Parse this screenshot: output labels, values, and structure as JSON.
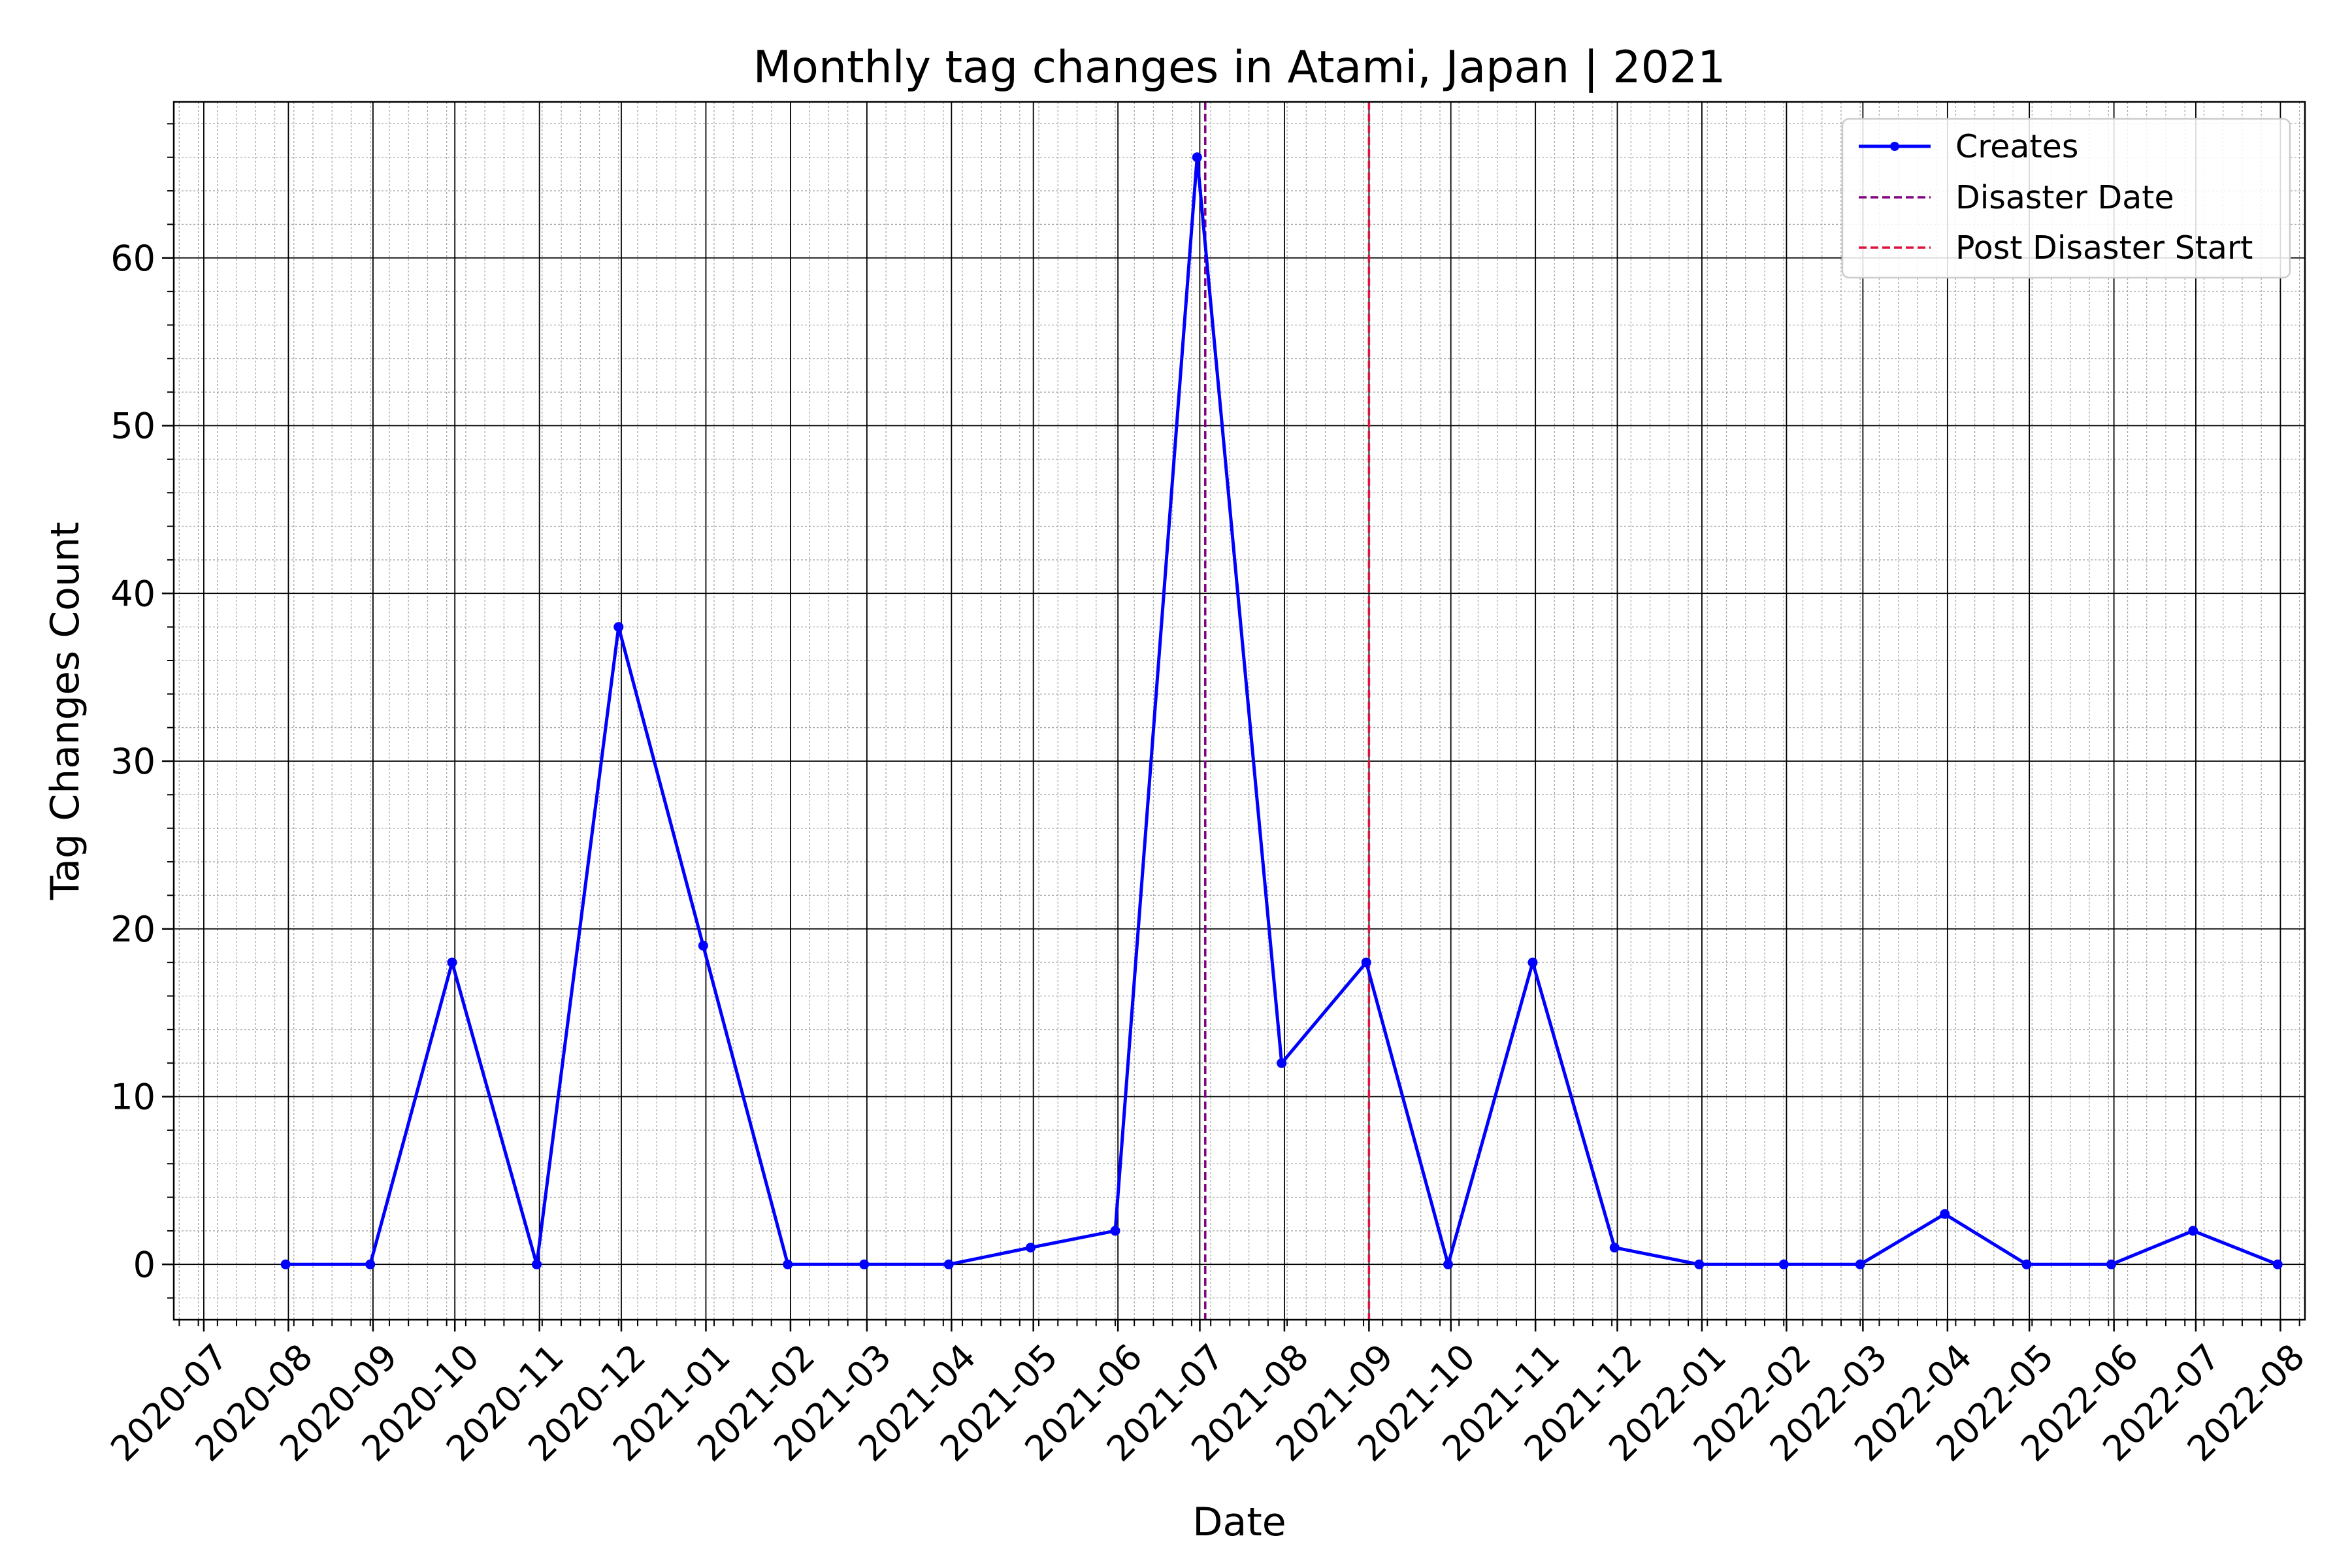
{
  "chart_data": {
    "type": "line",
    "title": "Monthly tag changes in Atami, Japan | 2021",
    "xlabel": "Date",
    "ylabel": "Tag Changes Count",
    "x_tick_labels": [
      "2020-07",
      "2020-08",
      "2020-09",
      "2020-10",
      "2020-11",
      "2020-12",
      "2021-01",
      "2021-02",
      "2021-03",
      "2021-04",
      "2021-05",
      "2021-06",
      "2021-07",
      "2021-08",
      "2021-09",
      "2021-10",
      "2021-11",
      "2021-12",
      "2022-01",
      "2022-02",
      "2022-03",
      "2022-04",
      "2022-05",
      "2022-06",
      "2022-07",
      "2022-08"
    ],
    "y_ticks": [
      0,
      10,
      20,
      30,
      40,
      50,
      60
    ],
    "xlim": [
      "2020-06-20",
      "2022-08-10"
    ],
    "ylim": [
      -3.3,
      69.3
    ],
    "grid": true,
    "legend_position": "top-right",
    "x": [
      "2020-07-31",
      "2020-08-31",
      "2020-09-30",
      "2020-10-31",
      "2020-11-30",
      "2020-12-31",
      "2021-01-31",
      "2021-02-28",
      "2021-03-31",
      "2021-04-30",
      "2021-05-31",
      "2021-06-30",
      "2021-07-31",
      "2021-08-31",
      "2021-09-30",
      "2021-10-31",
      "2021-11-30",
      "2021-12-31",
      "2022-01-31",
      "2022-02-28",
      "2022-03-31",
      "2022-04-30",
      "2022-05-31",
      "2022-06-30",
      "2022-07-31"
    ],
    "series": [
      {
        "name": "Creates",
        "color": "#0000ff",
        "values": [
          0,
          0,
          18,
          0,
          38,
          19,
          0,
          0,
          0,
          1,
          2,
          66,
          12,
          18,
          0,
          18,
          1,
          0,
          0,
          0,
          3,
          0,
          0,
          2,
          0
        ]
      }
    ],
    "vlines": [
      {
        "name": "Disaster Date",
        "x": "2021-07-03",
        "color": "#800080",
        "style": "dashed"
      },
      {
        "name": "Post Disaster Start",
        "x": "2021-09-01",
        "color": "#dc143c",
        "style": "dashed"
      }
    ]
  }
}
